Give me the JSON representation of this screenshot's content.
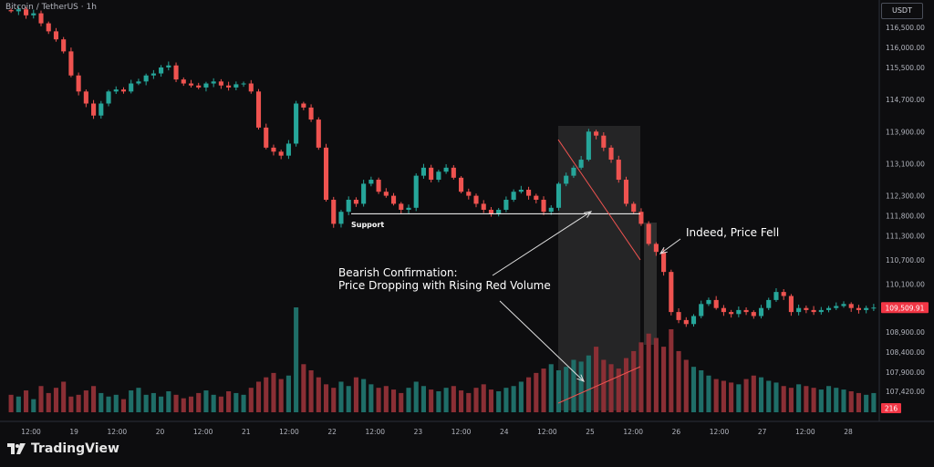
{
  "header": {
    "pair": "Bitcoin / TetherUS · 1h",
    "currency": "USDT"
  },
  "brand": {
    "name": "TradingView"
  },
  "chart_data": {
    "type": "candlestick",
    "y_axis_ticks": [
      "116,500.00",
      "116,000.00",
      "115,500.00",
      "114,700.00",
      "113,900.00",
      "113,100.00",
      "112,300.00",
      "111,800.00",
      "111,300.00",
      "110,700.00",
      "110,100.00",
      "108,900.00",
      "108,400.00",
      "107,900.00",
      "107,420.00"
    ],
    "y_range": [
      106900,
      117000
    ],
    "x_axis_ticks": [
      "12:00",
      "19",
      "12:00",
      "20",
      "12:00",
      "21",
      "12:00",
      "22",
      "12:00",
      "23",
      "12:00",
      "24",
      "12:00",
      "25",
      "12:00",
      "26",
      "12:00",
      "27",
      "12:00",
      "28"
    ],
    "last_price": "109,509.91",
    "last_volume": "216",
    "support_price": 111850,
    "price_path": [
      116900,
      116950,
      116800,
      116850,
      116600,
      116400,
      116200,
      115900,
      115300,
      114900,
      114600,
      114300,
      114600,
      114900,
      114950,
      114900,
      115100,
      115150,
      115300,
      115350,
      115500,
      115550,
      115200,
      115100,
      115050,
      115000,
      115100,
      115150,
      115050,
      115000,
      115080,
      115100,
      114900,
      114000,
      113500,
      113400,
      113300,
      113600,
      114600,
      114500,
      114200,
      113500,
      112200,
      111600,
      111900,
      112200,
      112100,
      112600,
      112700,
      112400,
      112300,
      112100,
      111950,
      112000,
      112800,
      113000,
      112700,
      112900,
      113000,
      112750,
      112400,
      112300,
      112100,
      111950,
      111850,
      111950,
      112200,
      112400,
      112450,
      112300,
      112200,
      111900,
      112000,
      112600,
      112800,
      113000,
      113200,
      113900,
      113800,
      113500,
      113200,
      112700,
      112100,
      111900,
      111600,
      111100,
      110900,
      110400,
      109400,
      109200,
      109100,
      109300,
      109600,
      109700,
      109500,
      109400,
      109350,
      109450,
      109400,
      109300,
      109500,
      109700,
      109900,
      109800,
      109400,
      109500,
      109450,
      109400,
      109450,
      109500,
      109550,
      109600,
      109500,
      109450,
      109500,
      109510
    ],
    "volume_path": [
      20,
      18,
      25,
      15,
      30,
      22,
      28,
      35,
      18,
      20,
      25,
      30,
      22,
      18,
      20,
      15,
      25,
      28,
      20,
      22,
      18,
      24,
      20,
      16,
      18,
      22,
      25,
      20,
      18,
      24,
      22,
      20,
      28,
      35,
      40,
      45,
      38,
      42,
      120,
      55,
      48,
      40,
      32,
      28,
      35,
      30,
      40,
      38,
      32,
      28,
      30,
      26,
      22,
      28,
      35,
      30,
      26,
      24,
      28,
      30,
      25,
      22,
      28,
      32,
      26,
      24,
      28,
      30,
      35,
      40,
      45,
      50,
      55,
      48,
      52,
      60,
      58,
      65,
      75,
      60,
      55,
      50,
      62,
      70,
      80,
      90,
      85,
      75,
      95,
      70,
      60,
      52,
      48,
      42,
      38,
      36,
      34,
      32,
      38,
      42,
      40,
      36,
      34,
      30,
      28,
      32,
      30,
      28,
      26,
      30,
      28,
      26,
      24,
      22,
      20,
      22
    ],
    "annotations": {
      "support": "Support",
      "bearish": "Bearish Confirmation:\nPrice Dropping with Rising Red Volume",
      "fell": "Indeed, Price Fell"
    }
  },
  "colors": {
    "up": "#26a69a",
    "down": "#ef5350",
    "volume_up": "#1f6e68",
    "volume_down": "#8b2f35",
    "last_price_tag": "#f23645",
    "highlight": "#3a3a3a"
  }
}
